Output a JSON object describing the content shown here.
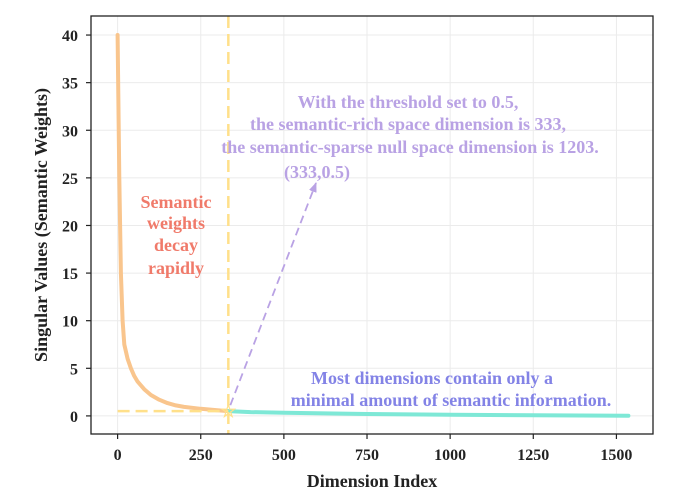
{
  "chart_data": {
    "type": "line",
    "xlabel": "Dimension Index",
    "ylabel": "Singular Values (Semantic Weights)",
    "xlim": [
      -80,
      1610
    ],
    "ylim": [
      -1.9,
      42
    ],
    "xticks": [
      0,
      250,
      500,
      750,
      1000,
      1250,
      1500
    ],
    "yticks": [
      0,
      5,
      10,
      15,
      20,
      25,
      30,
      35,
      40
    ],
    "grid": true,
    "series": [
      {
        "name": "semantic-rich",
        "color": "#f9c58d",
        "x": [
          0,
          5,
          10,
          15,
          20,
          30,
          40,
          50,
          60,
          80,
          100,
          125,
          150,
          175,
          200,
          250,
          300,
          333
        ],
        "y": [
          40.0,
          25.0,
          15.0,
          10.0,
          7.5,
          6.0,
          5.0,
          4.2,
          3.6,
          2.8,
          2.2,
          1.7,
          1.35,
          1.1,
          0.95,
          0.75,
          0.6,
          0.5
        ]
      },
      {
        "name": "semantic-sparse",
        "color": "#7ee8d6",
        "x": [
          333,
          400,
          500,
          600,
          750,
          1000,
          1250,
          1536
        ],
        "y": [
          0.5,
          0.4,
          0.33,
          0.27,
          0.2,
          0.12,
          0.06,
          0.02
        ]
      }
    ],
    "threshold": {
      "x": 333,
      "y": 0.5
    },
    "annotations": {
      "point_label": "(333,0.5)",
      "threshold_lines": [
        "With the threshold set to 0.5,",
        "the semantic-rich space dimension is 333,",
        "the semantic-sparse null space dimension is 1203."
      ],
      "decay_lines": [
        "Semantic",
        "weights",
        "decay",
        "rapidly"
      ],
      "minimal_lines": [
        "Most dimensions contain only a",
        "minimal amount of semantic information."
      ],
      "point_marker": "☆"
    },
    "colors": {
      "rich_curve": "#f9c58d",
      "sparse_curve": "#7ee8d6",
      "threshold_line": "#ffe08a",
      "arrow": "#b9a2e4",
      "threshold_text": "#b9a2e4",
      "decay_text": "#f07a6a",
      "minimal_text": "#8383e6",
      "grid": "#ebebeb",
      "frame": "#222222"
    }
  }
}
